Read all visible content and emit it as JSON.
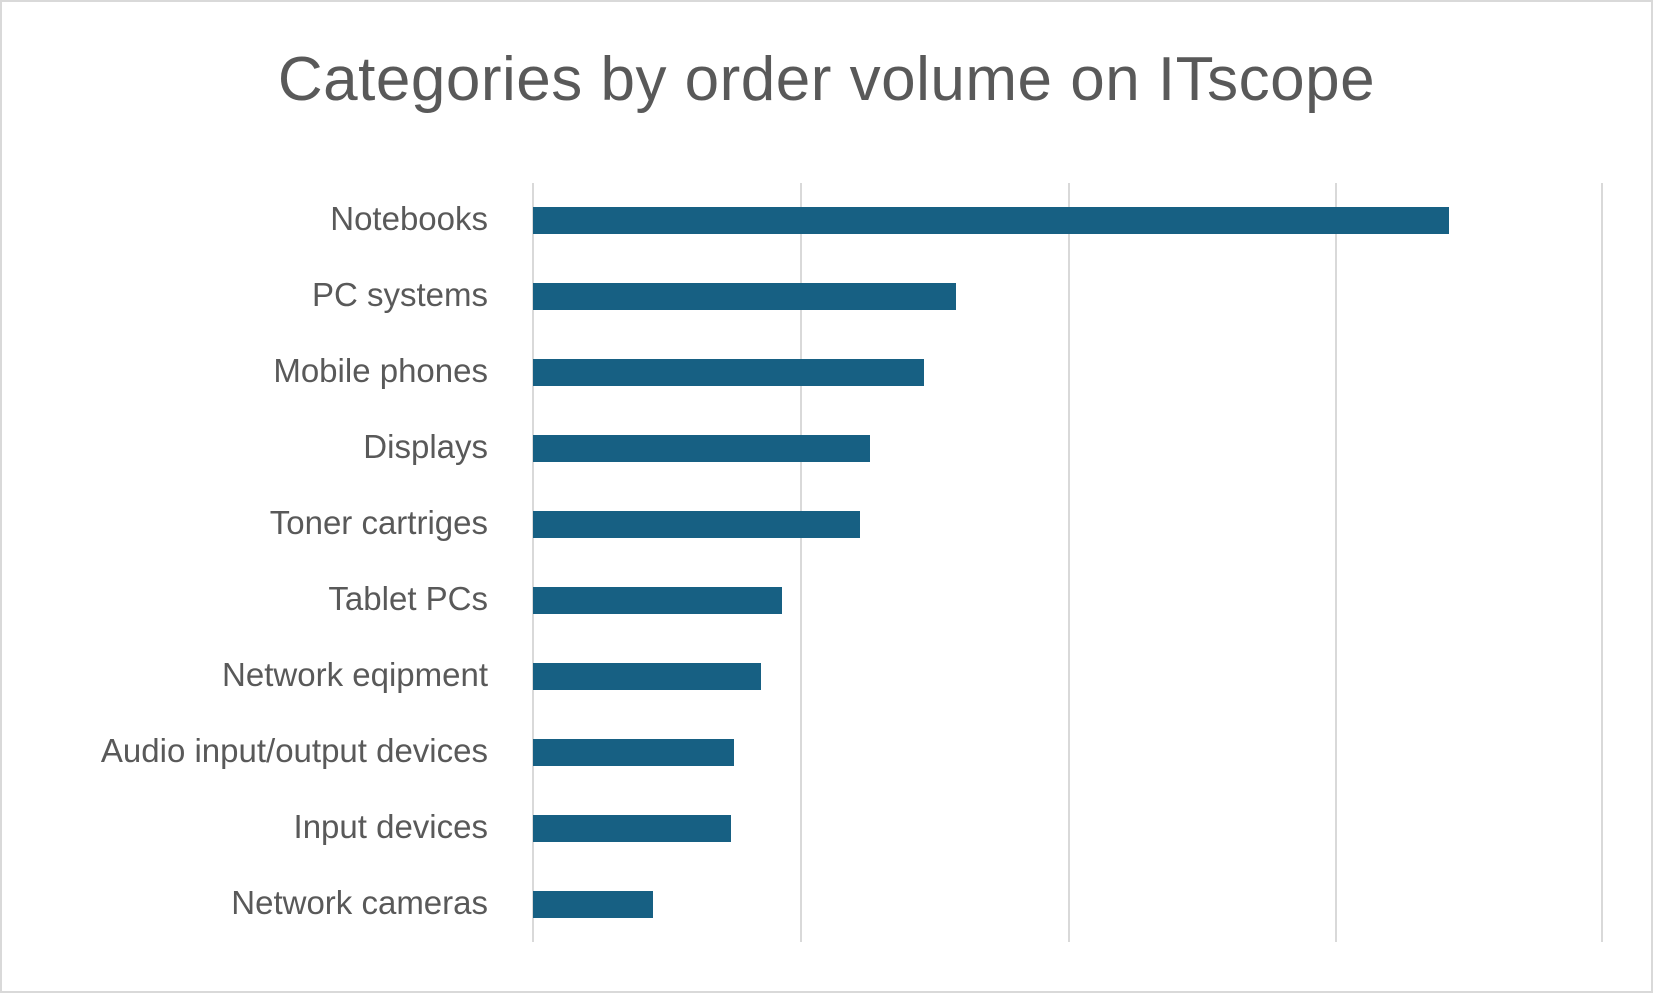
{
  "chart_data": {
    "type": "bar",
    "orientation": "horizontal",
    "title": "Categories by order volume on ITscope",
    "xlabel": "",
    "ylabel": "",
    "categories": [
      "Notebooks",
      "PC systems",
      "Mobile phones",
      "Displays",
      "Toner cartriges",
      "Tablet PCs",
      "Network eqipment",
      "Audio input/output devices",
      "Input devices",
      "Network cameras"
    ],
    "values": [
      3.42,
      1.58,
      1.46,
      1.26,
      1.22,
      0.93,
      0.85,
      0.75,
      0.74,
      0.45
    ],
    "value_units": "relative (gridline spacing = 1, no axis tick labels shown)",
    "xlim": [
      0,
      4
    ],
    "grid": true,
    "gridlines": [
      0,
      1,
      2,
      3,
      4
    ],
    "legend": null,
    "bar_color": "#176083"
  }
}
